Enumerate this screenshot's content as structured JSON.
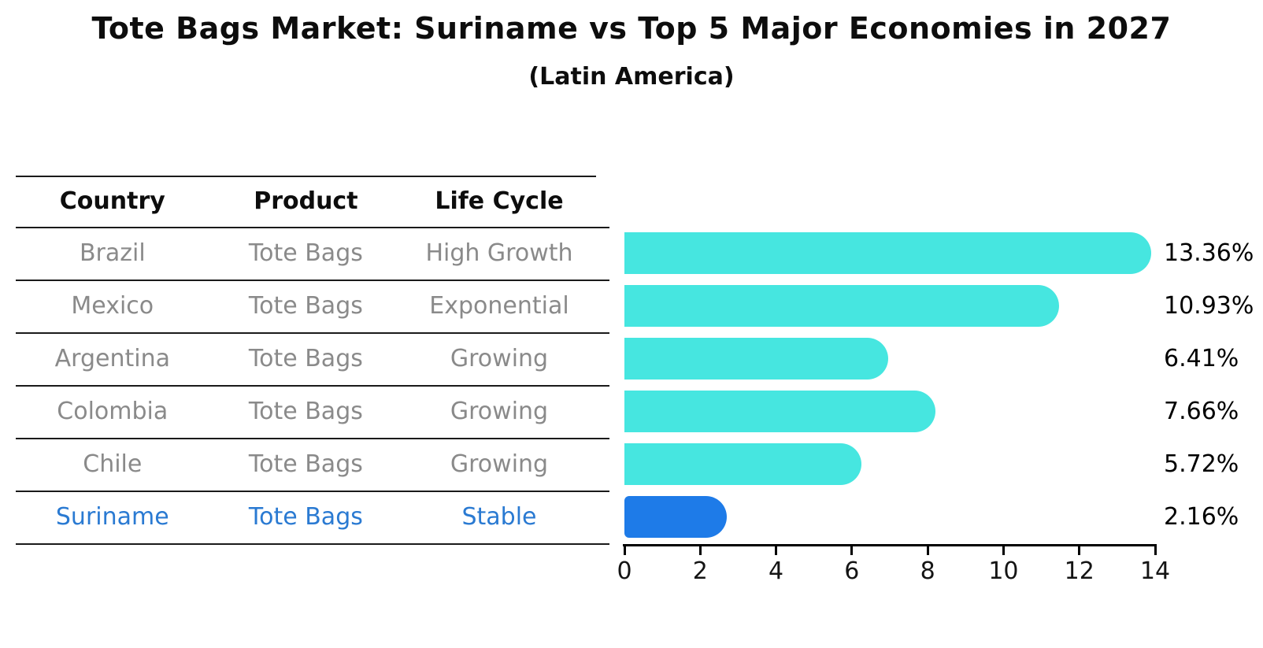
{
  "title": "Tote Bags Market: Suriname vs Top 5 Major Economies in 2027",
  "subtitle": "(Latin America)",
  "table": {
    "headers": [
      "Country",
      "Product",
      "Life Cycle"
    ],
    "rows": [
      {
        "country": "Brazil",
        "product": "Tote Bags",
        "life_cycle": "High Growth",
        "highlight": false
      },
      {
        "country": "Mexico",
        "product": "Tote Bags",
        "life_cycle": "Exponential",
        "highlight": false
      },
      {
        "country": "Argentina",
        "product": "Tote Bags",
        "life_cycle": "Growing",
        "highlight": false
      },
      {
        "country": "Colombia",
        "product": "Tote Bags",
        "life_cycle": "Growing",
        "highlight": false
      },
      {
        "country": "Chile",
        "product": "Tote Bags",
        "life_cycle": "Growing",
        "highlight": false
      },
      {
        "country": "Suriname",
        "product": "Tote Bags",
        "life_cycle": "Stable",
        "highlight": true
      }
    ]
  },
  "chart_data": {
    "type": "bar",
    "orientation": "horizontal",
    "categories": [
      "Brazil",
      "Mexico",
      "Argentina",
      "Colombia",
      "Chile",
      "Suriname"
    ],
    "values": [
      13.36,
      10.93,
      6.41,
      7.66,
      5.72,
      2.16
    ],
    "value_labels": [
      "13.36%",
      "10.93%",
      "6.41%",
      "7.66%",
      "5.72%",
      "2.16%"
    ],
    "title": "Tote Bags Market: Suriname vs Top 5 Major Economies in 2027 (Latin America)",
    "xlabel": "",
    "ylabel": "",
    "xlim": [
      0,
      14
    ],
    "xticks": [
      "0",
      "2",
      "4",
      "6",
      "8",
      "10",
      "12",
      "14"
    ],
    "grid": false,
    "legend_position": "none",
    "bar_color": "#46E6E0",
    "highlight_color": "#1E7BE8",
    "highlight_index": 5,
    "highlight_style": "dotted-edge"
  }
}
